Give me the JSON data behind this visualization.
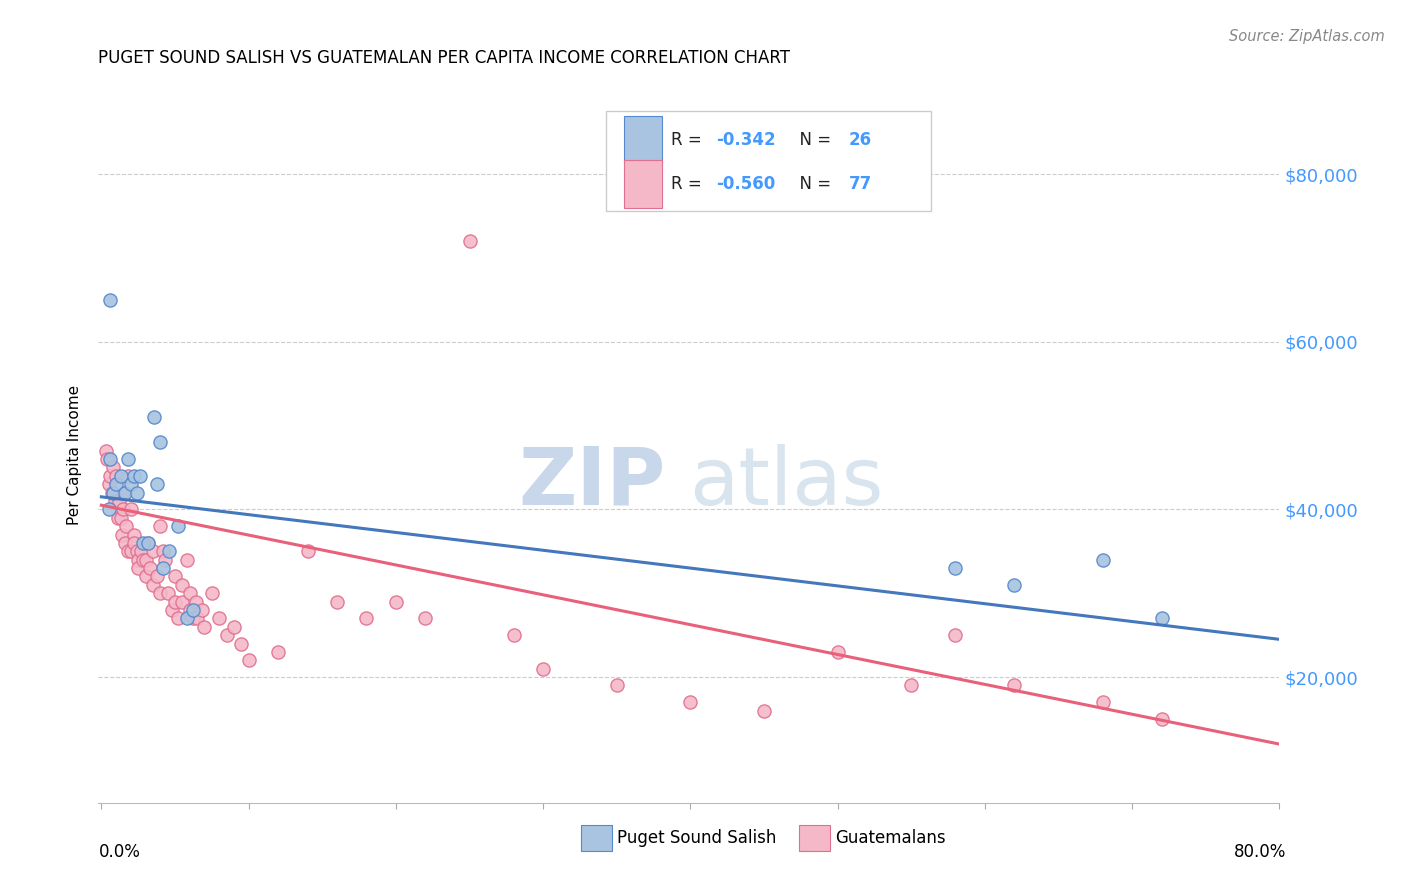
{
  "title": "PUGET SOUND SALISH VS GUATEMALAN PER CAPITA INCOME CORRELATION CHART",
  "source": "Source: ZipAtlas.com",
  "ylabel": "Per Capita Income",
  "ytick_labels": [
    "$20,000",
    "$40,000",
    "$60,000",
    "$80,000"
  ],
  "ytick_values": [
    20000,
    40000,
    60000,
    80000
  ],
  "ymin": 5000,
  "ymax": 88000,
  "xmin": -0.002,
  "xmax": 0.8,
  "blue_color": "#A8C4E0",
  "pink_color": "#F4B8C8",
  "blue_edge_color": "#5588CC",
  "pink_edge_color": "#E07090",
  "blue_line_color": "#4477BB",
  "pink_line_color": "#E8607A",
  "watermark_zip": "ZIP",
  "watermark_atlas": "atlas",
  "title_fontsize": 12,
  "source_fontsize": 11,
  "ytick_fontsize": 13,
  "legend_r_blue": "-0.342",
  "legend_n_blue": "26",
  "legend_r_pink": "-0.560",
  "legend_n_pink": "77",
  "blue_x": [
    0.006,
    0.005,
    0.008,
    0.01,
    0.013,
    0.016,
    0.018,
    0.02,
    0.022,
    0.024,
    0.026,
    0.028,
    0.032,
    0.036,
    0.038,
    0.04,
    0.042,
    0.046,
    0.052,
    0.058,
    0.062,
    0.006,
    0.58,
    0.62,
    0.68,
    0.72
  ],
  "blue_y": [
    65000,
    40000,
    42000,
    43000,
    44000,
    42000,
    46000,
    43000,
    44000,
    42000,
    44000,
    36000,
    36000,
    51000,
    43000,
    48000,
    33000,
    35000,
    38000,
    27000,
    28000,
    46000,
    33000,
    31000,
    34000,
    27000
  ],
  "pink_x": [
    0.25,
    0.003,
    0.004,
    0.005,
    0.006,
    0.007,
    0.008,
    0.009,
    0.01,
    0.011,
    0.012,
    0.013,
    0.014,
    0.015,
    0.015,
    0.016,
    0.017,
    0.018,
    0.018,
    0.02,
    0.02,
    0.022,
    0.022,
    0.024,
    0.025,
    0.025,
    0.027,
    0.028,
    0.03,
    0.03,
    0.032,
    0.033,
    0.035,
    0.035,
    0.038,
    0.04,
    0.04,
    0.042,
    0.043,
    0.045,
    0.048,
    0.05,
    0.05,
    0.052,
    0.055,
    0.055,
    0.058,
    0.06,
    0.06,
    0.062,
    0.064,
    0.065,
    0.068,
    0.07,
    0.075,
    0.08,
    0.085,
    0.09,
    0.095,
    0.1,
    0.12,
    0.14,
    0.16,
    0.18,
    0.2,
    0.22,
    0.28,
    0.3,
    0.35,
    0.4,
    0.45,
    0.5,
    0.55,
    0.58,
    0.62,
    0.68,
    0.72
  ],
  "pink_y": [
    72000,
    47000,
    46000,
    43000,
    44000,
    42000,
    45000,
    41000,
    44000,
    39000,
    41000,
    39000,
    37000,
    42000,
    40000,
    36000,
    38000,
    44000,
    35000,
    40000,
    35000,
    37000,
    36000,
    35000,
    34000,
    33000,
    35000,
    34000,
    34000,
    32000,
    36000,
    33000,
    35000,
    31000,
    32000,
    38000,
    30000,
    35000,
    34000,
    30000,
    28000,
    32000,
    29000,
    27000,
    31000,
    29000,
    34000,
    28000,
    30000,
    27000,
    29000,
    27000,
    28000,
    26000,
    30000,
    27000,
    25000,
    26000,
    24000,
    22000,
    23000,
    35000,
    29000,
    27000,
    29000,
    27000,
    25000,
    21000,
    19000,
    17000,
    16000,
    23000,
    19000,
    25000,
    19000,
    17000,
    15000
  ],
  "blue_line_x": [
    0.0,
    0.8
  ],
  "blue_line_y": [
    41500,
    24500
  ],
  "pink_line_x": [
    0.0,
    0.8
  ],
  "pink_line_y": [
    40500,
    12000
  ]
}
